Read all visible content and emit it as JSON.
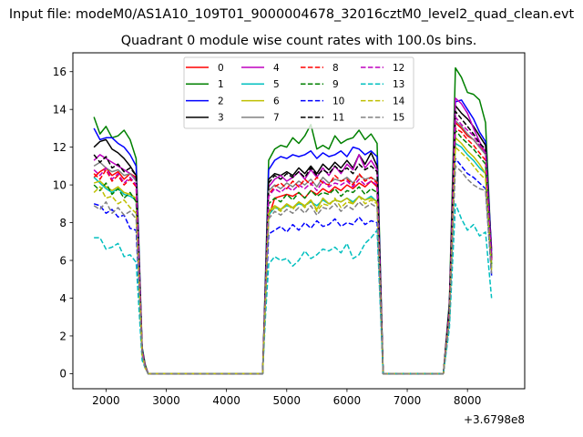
{
  "chart_data": {
    "type": "line",
    "suptitle": "Input file: modeM0/AS1A10_109T01_9000004678_32016cztM0_level2_quad_clean.evt",
    "title": "Quadrant 0 module wise count rates with 100.0s bins.",
    "xlabel": "",
    "ylabel": "",
    "x_offset_label": "+3.6798e8",
    "xlim": [
      1450,
      8950
    ],
    "ylim": [
      -0.8,
      17.0
    ],
    "xticks": [
      2000,
      3000,
      4000,
      5000,
      6000,
      7000,
      8000
    ],
    "yticks": [
      0,
      2,
      4,
      6,
      8,
      10,
      12,
      14,
      16
    ],
    "grid": false,
    "legend_position": "top-center",
    "legend_columns": 4,
    "x": [
      1800,
      1900,
      2000,
      2100,
      2200,
      2300,
      2400,
      2500,
      2600,
      2650,
      2700,
      2800,
      2900,
      3000,
      3100,
      3200,
      3300,
      3400,
      3500,
      3600,
      3700,
      3800,
      3900,
      4000,
      4100,
      4200,
      4300,
      4400,
      4500,
      4600,
      4650,
      4700,
      4800,
      4900,
      5000,
      5100,
      5200,
      5300,
      5400,
      5500,
      5600,
      5700,
      5800,
      5900,
      6000,
      6100,
      6200,
      6300,
      6400,
      6500,
      6600,
      6700,
      6800,
      6900,
      7000,
      7100,
      7200,
      7300,
      7400,
      7500,
      7600,
      7700,
      7800,
      7900,
      8000,
      8100,
      8200,
      8300,
      8400
    ],
    "series": [
      {
        "name": "0",
        "color": "#ff0000",
        "dash": "solid",
        "values": [
          10.4,
          10.7,
          10.9,
          10.5,
          10.7,
          10.3,
          10.6,
          10.4,
          1.2,
          0.4,
          0,
          0,
          0,
          0,
          0,
          0,
          0,
          0,
          0,
          0,
          0,
          0,
          0,
          0,
          0,
          0,
          0,
          0,
          0,
          0,
          4.5,
          8.3,
          9.3,
          9.4,
          9.5,
          9.4,
          9.6,
          9.3,
          9.7,
          9.5,
          9.8,
          9.6,
          9.9,
          9.7,
          10.0,
          9.8,
          10.1,
          9.9,
          10.2,
          9.9,
          0,
          0,
          0,
          0,
          0,
          0,
          0,
          0,
          0,
          0,
          0,
          3.2,
          13.3,
          13.0,
          12.6,
          12.4,
          12.0,
          11.8,
          6.6
        ]
      },
      {
        "name": "1",
        "color": "#008000",
        "dash": "solid",
        "values": [
          13.6,
          12.7,
          13.1,
          12.5,
          12.6,
          12.9,
          12.4,
          11.4,
          1.4,
          0.5,
          0,
          0,
          0,
          0,
          0,
          0,
          0,
          0,
          0,
          0,
          0,
          0,
          0,
          0,
          0,
          0,
          0,
          0,
          0,
          0,
          5.5,
          11.3,
          11.9,
          12.1,
          12.0,
          12.5,
          12.2,
          12.6,
          13.2,
          11.9,
          12.1,
          11.9,
          12.6,
          12.2,
          12.4,
          12.5,
          12.9,
          12.4,
          12.7,
          12.2,
          0,
          0,
          0,
          0,
          0,
          0,
          0,
          0,
          0,
          0,
          0,
          3.8,
          16.2,
          15.7,
          14.9,
          14.8,
          14.5,
          13.3,
          6.2
        ]
      },
      {
        "name": "2",
        "color": "#0000ff",
        "dash": "solid",
        "values": [
          13.0,
          12.4,
          12.5,
          12.5,
          12.2,
          12.0,
          11.6,
          11.0,
          1.3,
          0.4,
          0,
          0,
          0,
          0,
          0,
          0,
          0,
          0,
          0,
          0,
          0,
          0,
          0,
          0,
          0,
          0,
          0,
          0,
          0,
          0,
          5.2,
          10.8,
          11.3,
          11.5,
          11.4,
          11.6,
          11.5,
          11.6,
          11.8,
          11.4,
          11.7,
          11.5,
          11.6,
          11.8,
          11.5,
          12.0,
          11.9,
          11.6,
          11.8,
          11.5,
          0,
          0,
          0,
          0,
          0,
          0,
          0,
          0,
          0,
          0,
          0,
          3.6,
          14.4,
          14.5,
          14.0,
          13.5,
          12.8,
          12.3,
          6.5
        ]
      },
      {
        "name": "3",
        "color": "#000000",
        "dash": "solid",
        "values": [
          12.0,
          12.3,
          12.4,
          11.9,
          11.7,
          11.4,
          11.0,
          10.5,
          1.2,
          0.4,
          0,
          0,
          0,
          0,
          0,
          0,
          0,
          0,
          0,
          0,
          0,
          0,
          0,
          0,
          0,
          0,
          0,
          0,
          0,
          0,
          4.9,
          10.3,
          10.6,
          10.5,
          10.7,
          10.5,
          10.9,
          10.6,
          11.0,
          10.6,
          11.1,
          10.8,
          11.2,
          10.9,
          11.3,
          10.9,
          11.6,
          11.1,
          11.7,
          11.0,
          0,
          0,
          0,
          0,
          0,
          0,
          0,
          0,
          0,
          0,
          0,
          3.5,
          14.2,
          13.8,
          13.5,
          13.1,
          12.6,
          12.1,
          6.2
        ]
      },
      {
        "name": "4",
        "color": "#bf00bf",
        "dash": "solid",
        "values": [
          11.3,
          11.6,
          11.4,
          11.2,
          11.0,
          10.8,
          10.6,
          10.3,
          1.2,
          0.4,
          0,
          0,
          0,
          0,
          0,
          0,
          0,
          0,
          0,
          0,
          0,
          0,
          0,
          0,
          0,
          0,
          0,
          0,
          0,
          0,
          4.8,
          9.9,
          10.3,
          10.5,
          10.2,
          10.4,
          10.7,
          10.3,
          10.8,
          10.4,
          10.9,
          10.5,
          11.0,
          10.6,
          11.1,
          10.8,
          11.6,
          10.9,
          11.3,
          10.8,
          0,
          0,
          0,
          0,
          0,
          0,
          0,
          0,
          0,
          0,
          0,
          3.4,
          14.6,
          14.3,
          13.8,
          13.0,
          12.3,
          11.7,
          6.1
        ]
      },
      {
        "name": "5",
        "color": "#00bfbf",
        "dash": "solid",
        "values": [
          10.4,
          10.1,
          9.8,
          9.6,
          9.8,
          9.5,
          9.4,
          9.2,
          1.1,
          0.4,
          0,
          0,
          0,
          0,
          0,
          0,
          0,
          0,
          0,
          0,
          0,
          0,
          0,
          0,
          0,
          0,
          0,
          0,
          0,
          0,
          4.3,
          8.4,
          8.8,
          8.7,
          8.9,
          8.8,
          9.0,
          8.9,
          9.1,
          8.9,
          9.2,
          9.0,
          9.2,
          9.1,
          9.3,
          9.1,
          9.4,
          9.2,
          9.4,
          9.1,
          0,
          0,
          0,
          0,
          0,
          0,
          0,
          0,
          0,
          0,
          0,
          3.0,
          12.2,
          12.0,
          11.6,
          11.3,
          10.9,
          10.6,
          5.6
        ]
      },
      {
        "name": "6",
        "color": "#bfbf00",
        "dash": "solid",
        "values": [
          10.1,
          10.2,
          9.9,
          9.7,
          9.9,
          9.6,
          9.5,
          9.3,
          1.1,
          0.4,
          0,
          0,
          0,
          0,
          0,
          0,
          0,
          0,
          0,
          0,
          0,
          0,
          0,
          0,
          0,
          0,
          0,
          0,
          0,
          0,
          4.2,
          8.6,
          8.9,
          8.7,
          9.0,
          8.8,
          9.1,
          8.9,
          9.2,
          8.7,
          9.3,
          9.0,
          9.2,
          9.1,
          9.3,
          9.0,
          9.4,
          9.2,
          9.3,
          9.1,
          0,
          0,
          0,
          0,
          0,
          0,
          0,
          0,
          0,
          0,
          0,
          3.0,
          12.5,
          12.2,
          11.8,
          11.5,
          11.1,
          10.6,
          5.7
        ]
      },
      {
        "name": "7",
        "color": "#808080",
        "dash": "solid",
        "values": [
          11.0,
          11.2,
          10.9,
          10.7,
          10.8,
          10.5,
          10.6,
          10.2,
          1.2,
          0.4,
          0,
          0,
          0,
          0,
          0,
          0,
          0,
          0,
          0,
          0,
          0,
          0,
          0,
          0,
          0,
          0,
          0,
          0,
          0,
          0,
          4.7,
          9.7,
          10.0,
          9.8,
          10.1,
          9.9,
          10.2,
          10.0,
          10.3,
          9.9,
          10.4,
          10.1,
          10.3,
          10.2,
          10.4,
          10.1,
          10.5,
          10.3,
          10.4,
          10.2,
          0,
          0,
          0,
          0,
          0,
          0,
          0,
          0,
          0,
          0,
          0,
          3.3,
          13.4,
          13.1,
          12.7,
          12.4,
          12.0,
          11.6,
          6.0
        ]
      },
      {
        "name": "8",
        "color": "#ff0000",
        "dash": "dashed",
        "values": [
          10.6,
          10.3,
          10.8,
          10.2,
          10.5,
          10.0,
          10.3,
          9.9,
          1.2,
          0.4,
          0,
          0,
          0,
          0,
          0,
          0,
          0,
          0,
          0,
          0,
          0,
          0,
          0,
          0,
          0,
          0,
          0,
          0,
          0,
          0,
          4.6,
          9.5,
          9.9,
          10.1,
          9.8,
          10.2,
          9.9,
          10.3,
          10.0,
          10.4,
          10.1,
          10.0,
          10.5,
          10.2,
          10.3,
          10.0,
          10.6,
          10.2,
          10.4,
          10.1,
          0,
          0,
          0,
          0,
          0,
          0,
          0,
          0,
          0,
          0,
          0,
          3.4,
          13.0,
          12.8,
          12.4,
          12.1,
          11.7,
          11.3,
          6.0
        ]
      },
      {
        "name": "9",
        "color": "#008000",
        "dash": "dashed",
        "values": [
          10.0,
          9.7,
          10.1,
          9.5,
          9.8,
          9.3,
          9.6,
          9.1,
          1.1,
          0.4,
          0,
          0,
          0,
          0,
          0,
          0,
          0,
          0,
          0,
          0,
          0,
          0,
          0,
          0,
          0,
          0,
          0,
          0,
          0,
          0,
          4.4,
          9.0,
          9.3,
          9.1,
          9.5,
          9.2,
          9.6,
          9.3,
          9.7,
          9.4,
          9.6,
          9.5,
          9.8,
          9.4,
          9.7,
          9.6,
          9.9,
          9.5,
          9.8,
          9.6,
          0,
          0,
          0,
          0,
          0,
          0,
          0,
          0,
          0,
          0,
          0,
          3.1,
          12.9,
          12.5,
          12.2,
          11.9,
          11.5,
          11.1,
          5.8
        ]
      },
      {
        "name": "10",
        "color": "#0000ff",
        "dash": "dashed",
        "values": [
          9.0,
          8.9,
          8.5,
          8.7,
          8.3,
          8.4,
          7.7,
          7.6,
          0.9,
          0.3,
          0,
          0,
          0,
          0,
          0,
          0,
          0,
          0,
          0,
          0,
          0,
          0,
          0,
          0,
          0,
          0,
          0,
          0,
          0,
          0,
          3.8,
          7.4,
          7.6,
          7.8,
          7.5,
          7.9,
          7.6,
          8.0,
          7.7,
          8.1,
          7.8,
          7.9,
          8.2,
          7.8,
          8.0,
          7.9,
          8.3,
          7.9,
          8.1,
          8.0,
          0,
          0,
          0,
          0,
          0,
          0,
          0,
          0,
          0,
          0,
          0,
          2.7,
          11.4,
          11.0,
          10.6,
          10.4,
          10.1,
          9.8,
          5.2
        ]
      },
      {
        "name": "11",
        "color": "#000000",
        "dash": "dashed",
        "values": [
          11.6,
          11.2,
          11.5,
          10.9,
          11.1,
          10.7,
          10.9,
          10.5,
          1.2,
          0.4,
          0,
          0,
          0,
          0,
          0,
          0,
          0,
          0,
          0,
          0,
          0,
          0,
          0,
          0,
          0,
          0,
          0,
          0,
          0,
          0,
          4.9,
          10.1,
          10.5,
          10.3,
          10.6,
          10.4,
          10.7,
          10.4,
          10.9,
          10.5,
          10.8,
          10.6,
          11.0,
          10.7,
          10.9,
          10.6,
          11.1,
          10.8,
          11.0,
          10.7,
          0,
          0,
          0,
          0,
          0,
          0,
          0,
          0,
          0,
          0,
          0,
          3.5,
          13.9,
          13.5,
          13.1,
          12.7,
          12.2,
          11.9,
          6.1
        ]
      },
      {
        "name": "12",
        "color": "#bf00bf",
        "dash": "dashed",
        "values": [
          10.8,
          10.5,
          10.9,
          10.3,
          10.6,
          10.1,
          10.4,
          10.0,
          1.2,
          0.4,
          0,
          0,
          0,
          0,
          0,
          0,
          0,
          0,
          0,
          0,
          0,
          0,
          0,
          0,
          0,
          0,
          0,
          0,
          0,
          0,
          4.6,
          9.4,
          9.8,
          9.6,
          9.9,
          9.7,
          10.0,
          9.8,
          10.1,
          9.7,
          10.2,
          9.9,
          10.1,
          10.0,
          10.2,
          9.9,
          10.3,
          10.0,
          10.2,
          10.0,
          0,
          0,
          0,
          0,
          0,
          0,
          0,
          0,
          0,
          0,
          0,
          3.3,
          13.6,
          13.2,
          12.9,
          12.6,
          12.1,
          11.7,
          6.0
        ]
      },
      {
        "name": "13",
        "color": "#00bfbf",
        "dash": "dashed",
        "values": [
          7.2,
          7.2,
          6.6,
          6.7,
          6.9,
          6.2,
          6.3,
          5.9,
          0.7,
          0.3,
          0,
          0,
          0,
          0,
          0,
          0,
          0,
          0,
          0,
          0,
          0,
          0,
          0,
          0,
          0,
          0,
          0,
          0,
          0,
          0,
          3.2,
          5.8,
          6.2,
          6.0,
          6.1,
          5.7,
          6.0,
          6.5,
          6.1,
          6.3,
          6.6,
          6.5,
          6.7,
          6.4,
          6.9,
          6.1,
          6.3,
          6.9,
          7.2,
          7.6,
          0,
          0,
          0,
          0,
          0,
          0,
          0,
          0,
          0,
          0,
          0,
          2.4,
          9.0,
          8.2,
          7.6,
          7.9,
          7.3,
          7.5,
          4.0
        ]
      },
      {
        "name": "14",
        "color": "#bfbf00",
        "dash": "dashed",
        "values": [
          9.6,
          9.9,
          9.3,
          9.4,
          9.0,
          9.2,
          8.8,
          8.5,
          1.0,
          0.3,
          0,
          0,
          0,
          0,
          0,
          0,
          0,
          0,
          0,
          0,
          0,
          0,
          0,
          0,
          0,
          0,
          0,
          0,
          0,
          0,
          4.1,
          8.5,
          8.8,
          8.6,
          9.0,
          8.7,
          9.1,
          8.8,
          9.2,
          8.6,
          9.0,
          8.9,
          9.3,
          8.8,
          9.1,
          9.0,
          9.4,
          9.0,
          9.2,
          9.0,
          0,
          0,
          0,
          0,
          0,
          0,
          0,
          0,
          0,
          0,
          0,
          3.0,
          12.0,
          11.7,
          11.4,
          11.0,
          10.6,
          10.3,
          5.5
        ]
      },
      {
        "name": "15",
        "color": "#808080",
        "dash": "dashed",
        "values": [
          8.9,
          8.7,
          9.1,
          8.5,
          8.8,
          8.4,
          8.6,
          8.2,
          1.0,
          0.3,
          0,
          0,
          0,
          0,
          0,
          0,
          0,
          0,
          0,
          0,
          0,
          0,
          0,
          0,
          0,
          0,
          0,
          0,
          0,
          0,
          4.0,
          8.2,
          8.6,
          8.4,
          8.7,
          8.5,
          8.8,
          8.5,
          8.9,
          8.4,
          8.8,
          8.7,
          9.0,
          8.6,
          8.9,
          8.7,
          9.1,
          8.8,
          9.0,
          8.8,
          0,
          0,
          0,
          0,
          0,
          0,
          0,
          0,
          0,
          0,
          0,
          2.9,
          11.0,
          10.7,
          10.3,
          10.0,
          9.8,
          9.7,
          5.3
        ]
      }
    ]
  }
}
